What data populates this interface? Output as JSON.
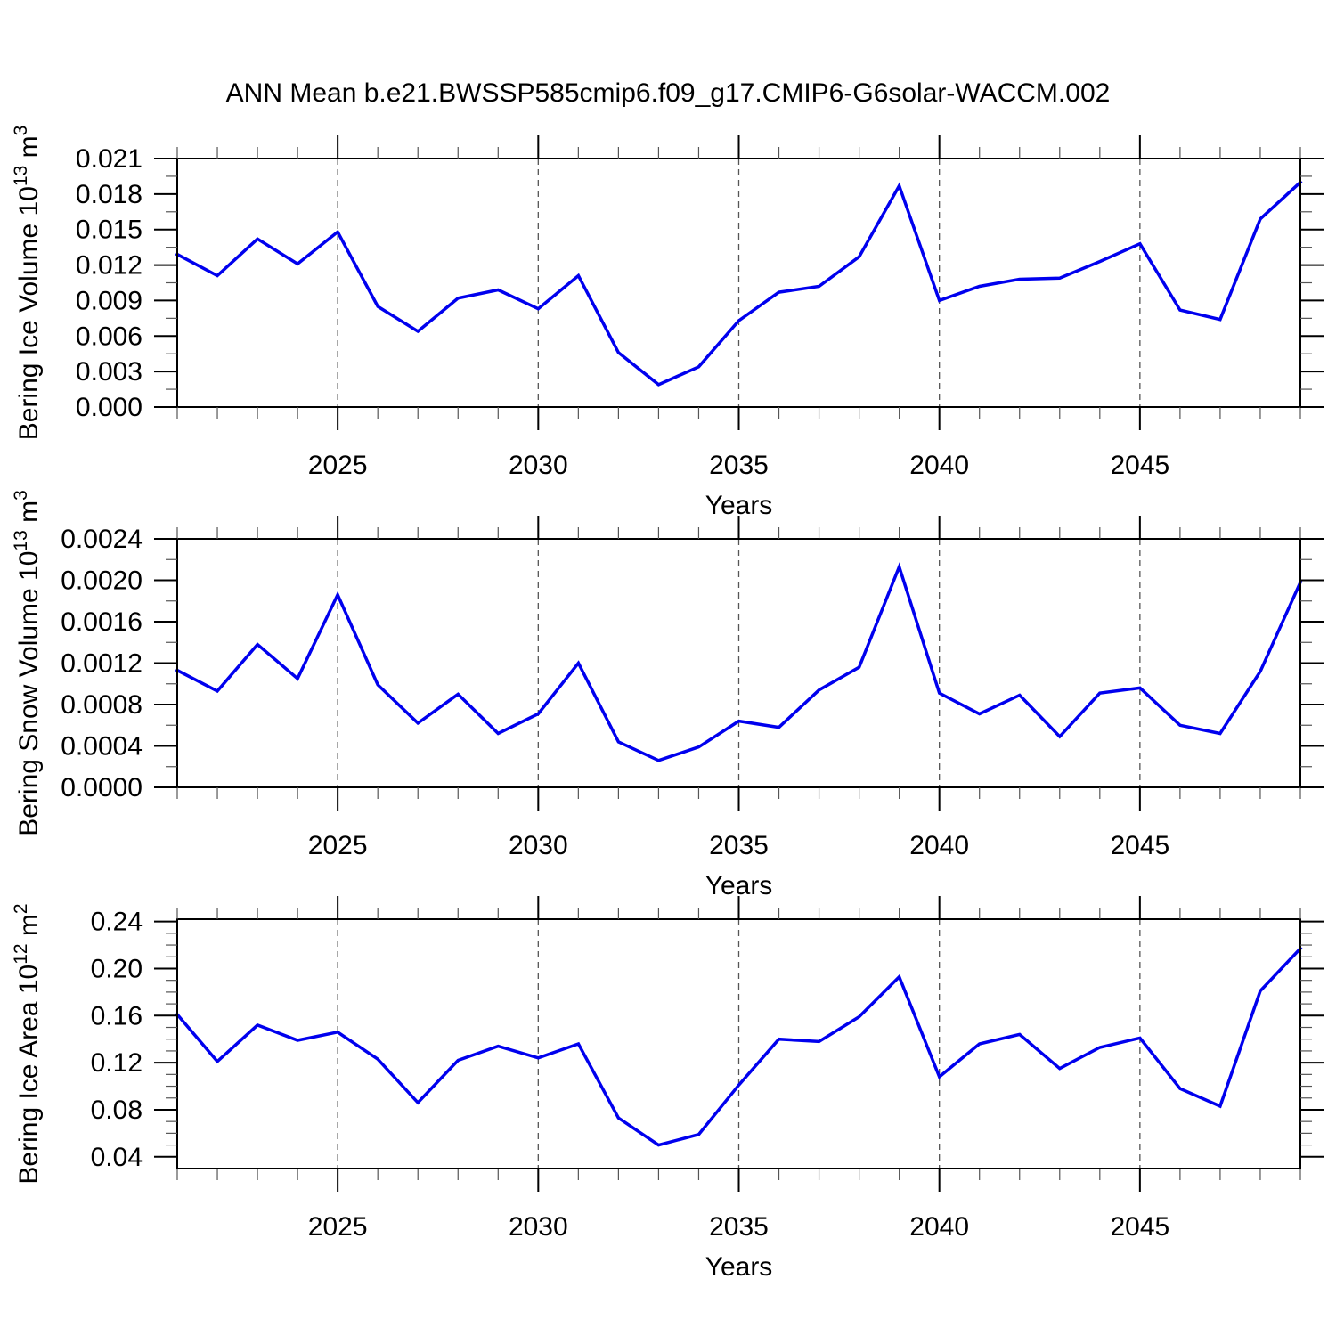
{
  "title": "ANN Mean b.e21.BWSSP585cmip6.f09_g17.CMIP6-G6solar-WACCM.002",
  "colors": {
    "line": "#0000ee",
    "axis": "#000000",
    "grid": "#555555",
    "background": "#ffffff"
  },
  "x_axis": {
    "label": "Years",
    "start": 2021,
    "end": 2049,
    "major_ticks": [
      2025,
      2030,
      2035,
      2040,
      2045
    ],
    "major_tick_labels": [
      "2025",
      "2030",
      "2035",
      "2040",
      "2045"
    ],
    "minor_step_years": 1
  },
  "chart_data": [
    {
      "type": "line",
      "name": "bering-ice-volume",
      "ylabel": "Bering Ice Volume 10^13 m^3",
      "ylabel_parts": [
        {
          "t": "Bering Ice Volume 10"
        },
        {
          "t": "13",
          "sup": true
        },
        {
          "t": " m"
        },
        {
          "t": "3",
          "sup": true
        }
      ],
      "xlabel": "Years",
      "ylim": [
        0.0,
        0.021
      ],
      "yticks": [
        0.021,
        0.018,
        0.015,
        0.012,
        0.009,
        0.006,
        0.003,
        0.0
      ],
      "ytick_labels": [
        "0.021",
        "0.018",
        "0.015",
        "0.012",
        "0.009",
        "0.006",
        "0.003",
        "0.000"
      ],
      "yticks_minor": [
        0.0015,
        0.0045,
        0.0075,
        0.0105,
        0.0135,
        0.0165,
        0.0195
      ],
      "x": [
        2021,
        2022,
        2023,
        2024,
        2025,
        2026,
        2027,
        2028,
        2029,
        2030,
        2031,
        2032,
        2033,
        2034,
        2035,
        2036,
        2037,
        2038,
        2039,
        2040,
        2041,
        2042,
        2043,
        2044,
        2045,
        2046,
        2047,
        2048,
        2049
      ],
      "values": [
        0.0129,
        0.0111,
        0.0142,
        0.0121,
        0.0148,
        0.0085,
        0.0064,
        0.0092,
        0.0099,
        0.0083,
        0.0111,
        0.0046,
        0.0019,
        0.0034,
        0.0073,
        0.0097,
        0.0102,
        0.0127,
        0.0187,
        0.009,
        0.0102,
        0.0108,
        0.0109,
        0.0123,
        0.0138,
        0.0082,
        0.0074,
        0.0159,
        0.019
      ]
    },
    {
      "type": "line",
      "name": "bering-snow-volume",
      "ylabel": "Bering Snow Volume 10^13 m^3",
      "ylabel_parts": [
        {
          "t": "Bering Snow Volume 10"
        },
        {
          "t": "13",
          "sup": true
        },
        {
          "t": " m"
        },
        {
          "t": "3",
          "sup": true
        }
      ],
      "xlabel": "Years",
      "ylim": [
        0.0,
        0.0024
      ],
      "yticks": [
        0.0024,
        0.002,
        0.0016,
        0.0012,
        0.0008,
        0.0004,
        0.0
      ],
      "ytick_labels": [
        "0.0024",
        "0.0020",
        "0.0016",
        "0.0012",
        "0.0008",
        "0.0004",
        "0.0000"
      ],
      "yticks_minor": [
        0.0002,
        0.0006,
        0.001,
        0.0014,
        0.0018,
        0.0022
      ],
      "x": [
        2021,
        2022,
        2023,
        2024,
        2025,
        2026,
        2027,
        2028,
        2029,
        2030,
        2031,
        2032,
        2033,
        2034,
        2035,
        2036,
        2037,
        2038,
        2039,
        2040,
        2041,
        2042,
        2043,
        2044,
        2045,
        2046,
        2047,
        2048,
        2049
      ],
      "values": [
        0.00113,
        0.00093,
        0.00138,
        0.00105,
        0.00186,
        0.00099,
        0.00062,
        0.0009,
        0.00052,
        0.00071,
        0.0012,
        0.00044,
        0.00026,
        0.00039,
        0.00064,
        0.00058,
        0.00094,
        0.00116,
        0.00213,
        0.00091,
        0.00071,
        0.00089,
        0.00049,
        0.00091,
        0.00096,
        0.0006,
        0.00052,
        0.00112,
        0.00198
      ]
    },
    {
      "type": "line",
      "name": "bering-ice-area",
      "ylabel": "Bering Ice Area 10^12 m^2",
      "ylabel_parts": [
        {
          "t": "Bering Ice Area 10"
        },
        {
          "t": "12",
          "sup": true
        },
        {
          "t": " m"
        },
        {
          "t": "2",
          "sup": true
        }
      ],
      "xlabel": "Years",
      "ylim": [
        0.03,
        0.242
      ],
      "yticks": [
        0.24,
        0.2,
        0.16,
        0.12,
        0.08,
        0.04
      ],
      "ytick_labels": [
        "0.24",
        "0.20",
        "0.16",
        "0.12",
        "0.08",
        "0.04"
      ],
      "yticks_minor": [
        0.05,
        0.06,
        0.07,
        0.09,
        0.1,
        0.11,
        0.13,
        0.14,
        0.15,
        0.17,
        0.18,
        0.19,
        0.21,
        0.22,
        0.23
      ],
      "x": [
        2021,
        2022,
        2023,
        2024,
        2025,
        2026,
        2027,
        2028,
        2029,
        2030,
        2031,
        2032,
        2033,
        2034,
        2035,
        2036,
        2037,
        2038,
        2039,
        2040,
        2041,
        2042,
        2043,
        2044,
        2045,
        2046,
        2047,
        2048,
        2049
      ],
      "values": [
        0.161,
        0.121,
        0.152,
        0.139,
        0.146,
        0.123,
        0.086,
        0.122,
        0.134,
        0.124,
        0.136,
        0.073,
        0.05,
        0.059,
        0.101,
        0.14,
        0.138,
        0.159,
        0.193,
        0.108,
        0.136,
        0.144,
        0.115,
        0.133,
        0.141,
        0.098,
        0.083,
        0.181,
        0.217
      ]
    }
  ]
}
